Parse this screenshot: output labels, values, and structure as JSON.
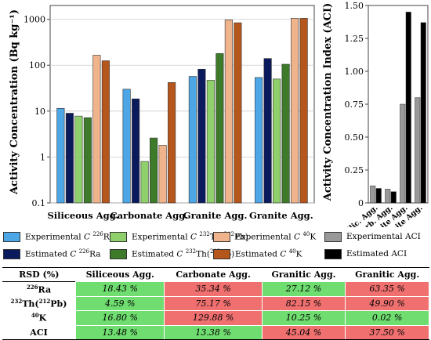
{
  "chart_data": [
    {
      "type": "bar",
      "yscale": "log",
      "ylabel": "Activity Concentration (Bq kg⁻¹)",
      "ylim": [
        0.1,
        2000
      ],
      "yticks": [
        {
          "value": 0.1,
          "label": "0.1"
        },
        {
          "value": 1,
          "label": "1"
        },
        {
          "value": 10,
          "label": "10"
        },
        {
          "value": 100,
          "label": "100"
        },
        {
          "value": 1000,
          "label": "1000"
        }
      ],
      "categories": [
        "Siliceous Agg.",
        "Carbonate Agg.",
        "Granite Agg.",
        "Granite Agg."
      ],
      "series": [
        {
          "name": "Experimental C 226Ra",
          "color": "#4da6e6",
          "values": [
            11.5,
            30,
            57,
            54
          ]
        },
        {
          "name": "Estimated C 226Ra",
          "color": "#0b1a5c",
          "values": [
            9,
            18.5,
            82,
            140
          ]
        },
        {
          "name": "Experimental C 232Th(212Pb)",
          "color": "#90d06c",
          "values": [
            7.8,
            0.8,
            47,
            50
          ]
        },
        {
          "name": "Estimated C 232Th(212Pb)",
          "color": "#3d7a2a",
          "values": [
            7.2,
            2.6,
            180,
            105
          ]
        },
        {
          "name": "Experimental C 40K",
          "color": "#f0b48c",
          "values": [
            165,
            1.8,
            970,
            1050
          ]
        },
        {
          "name": "Estimated C 40K",
          "color": "#b5561c",
          "values": [
            125,
            42,
            840,
            1050
          ]
        }
      ]
    },
    {
      "type": "bar",
      "ylabel": "Activity Concentration Index (ACI)",
      "ylim": [
        0,
        1.5
      ],
      "yticks": [
        {
          "value": 0,
          "label": "0"
        },
        {
          "value": 0.25,
          "label": "0.25"
        },
        {
          "value": 0.5,
          "label": "0.50"
        },
        {
          "value": 0.75,
          "label": "0.75"
        },
        {
          "value": 1.0,
          "label": "1.00"
        },
        {
          "value": 1.25,
          "label": "1.25"
        },
        {
          "value": 1.5,
          "label": "1.50"
        }
      ],
      "categories": [
        "Silic. Agg.",
        "Carb. Agg.",
        "Granite Agg.",
        "Granite Agg."
      ],
      "series": [
        {
          "name": "Experimental ACI",
          "color": "#999999",
          "values": [
            0.13,
            0.105,
            0.75,
            0.8
          ]
        },
        {
          "name": "Estimated ACI",
          "color": "#000000",
          "values": [
            0.11,
            0.085,
            1.45,
            1.37
          ]
        }
      ]
    }
  ],
  "legend": [
    {
      "pre": "Experimental ",
      "sym": "C",
      "sup": "226",
      "post": "Ra",
      "color": "#4da6e6"
    },
    {
      "pre": "Experimental ",
      "sym": "C",
      "sup": "232",
      "post": "Th(",
      "sup2": "212",
      "post2": "Pb)",
      "color": "#90d06c"
    },
    {
      "pre": "Experimental ",
      "sym": "C",
      "sup": "40",
      "post": "K",
      "color": "#f0b48c"
    },
    {
      "pre": "Experimental ACI",
      "color": "#999999"
    },
    {
      "pre": "Estimated ",
      "sym": "C",
      "sup": "226",
      "post": "Ra",
      "color": "#0b1a5c"
    },
    {
      "pre": "Estimated ",
      "sym": "C",
      "sup": "232",
      "post": "Th(",
      "sup2": "212",
      "post2": "Pb)",
      "color": "#3d7a2a"
    },
    {
      "pre": "Estimated ",
      "sym": "C",
      "sup": "40",
      "post": "K",
      "color": "#b5561c"
    },
    {
      "pre": "Estimated ACI",
      "color": "#000000"
    }
  ],
  "table": {
    "header": [
      "RSD (%)",
      "Siliceous Agg.",
      "Carbonate Agg.",
      "Granitic Agg.",
      "Granitic Agg."
    ],
    "rows": [
      {
        "sup": "226",
        "name": "Ra",
        "cells": [
          "18.43 %",
          "35.34 %",
          "27.12 %",
          "63.35 %"
        ],
        "status": [
          "good",
          "bad",
          "good",
          "bad"
        ]
      },
      {
        "sup": "232",
        "name": "Th(",
        "sup2": "212",
        "name2": "Pb)",
        "cells": [
          "4.59 %",
          "75.17 %",
          "82.15 %",
          "49.90 %"
        ],
        "status": [
          "good",
          "bad",
          "bad",
          "bad"
        ]
      },
      {
        "sup": "40",
        "name": "K",
        "cells": [
          "16.80 %",
          "129.88 %",
          "10.25 %",
          "0.02 %"
        ],
        "status": [
          "good",
          "bad",
          "good",
          "good"
        ]
      },
      {
        "name": "ACI",
        "cells": [
          "13.48 %",
          "13.38 %",
          "45.04 %",
          "37.50 %"
        ],
        "status": [
          "good",
          "good",
          "bad",
          "bad"
        ]
      }
    ]
  }
}
